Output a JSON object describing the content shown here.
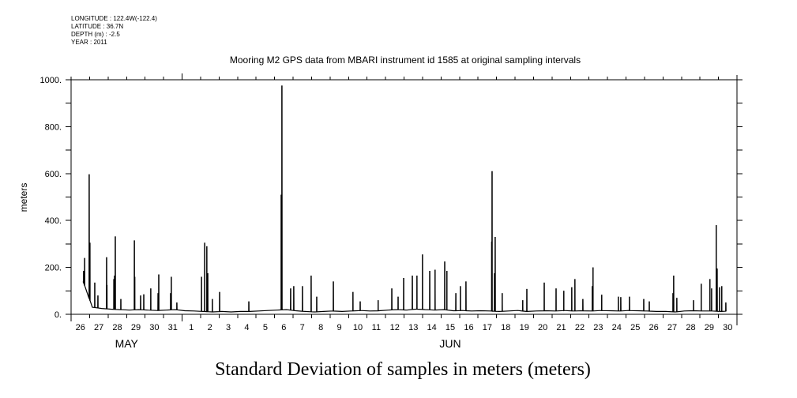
{
  "header": {
    "longitude": "LONGITUDE : 122.4W(-122.4)",
    "latitude": "LATITUDE : 36.7N",
    "depth": "DEPTH (m) : -2.5",
    "year": "YEAR : 2011"
  },
  "chart_data": {
    "type": "line",
    "title": "Mooring M2 GPS data from MBARI instrument id 1585 at original sampling intervals",
    "xlabel": "Standard Deviation of samples in meters (meters)",
    "ylabel": "meters",
    "x_units": "days since 2011-05-26 00:00",
    "xlim": [
      0,
      36
    ],
    "ylim": [
      0,
      1000
    ],
    "yticks": [
      0,
      200,
      400,
      600,
      800,
      1000
    ],
    "ytick_labels": [
      "0.",
      "200.",
      "400.",
      "600.",
      "800.",
      "1000."
    ],
    "y_minor_step": 100,
    "xtick_labels": [
      "26",
      "27",
      "28",
      "29",
      "30",
      "31",
      "1",
      "2",
      "3",
      "4",
      "5",
      "6",
      "7",
      "8",
      "9",
      "10",
      "11",
      "12",
      "13",
      "14",
      "15",
      "16",
      "17",
      "18",
      "19",
      "20",
      "21",
      "22",
      "23",
      "24",
      "25",
      "26",
      "27",
      "28",
      "29",
      "30"
    ],
    "month_labels": [
      {
        "label": "MAY",
        "day": 3
      },
      {
        "label": "JUN",
        "day": 20.5
      }
    ],
    "month_boundary_day": 6,
    "line_color": "#000000",
    "data_start_day": 0.65,
    "data_end_day": 35.55,
    "baseline_step_days": 0.5,
    "baseline": [
      140,
      30,
      25,
      22,
      20,
      18,
      20,
      18,
      16,
      18,
      20,
      15,
      14,
      12,
      10,
      12,
      10,
      12,
      12,
      14,
      16,
      18,
      20,
      15,
      12,
      10,
      12,
      14,
      12,
      14,
      16,
      14,
      15,
      18,
      20,
      18,
      22,
      20,
      18,
      20,
      15,
      16,
      14,
      15,
      14,
      12,
      14,
      16,
      12,
      14,
      15,
      14,
      16,
      14,
      15,
      14,
      16,
      15,
      14,
      16,
      15,
      14,
      12,
      12,
      10,
      14,
      15,
      14,
      14,
      12,
      14,
      10
    ],
    "spikes": [
      [
        0.68,
        185
      ],
      [
        0.73,
        240
      ],
      [
        0.98,
        597
      ],
      [
        1.02,
        305
      ],
      [
        1.28,
        135
      ],
      [
        1.45,
        80
      ],
      [
        1.92,
        243
      ],
      [
        1.94,
        125
      ],
      [
        2.31,
        150
      ],
      [
        2.35,
        165
      ],
      [
        2.39,
        332
      ],
      [
        2.69,
        65
      ],
      [
        3.42,
        315
      ],
      [
        3.44,
        160
      ],
      [
        3.76,
        80
      ],
      [
        3.93,
        85
      ],
      [
        4.31,
        110
      ],
      [
        4.7,
        90
      ],
      [
        4.74,
        170
      ],
      [
        5.38,
        90
      ],
      [
        5.42,
        160
      ],
      [
        5.72,
        50
      ],
      [
        7.05,
        160
      ],
      [
        7.22,
        305
      ],
      [
        7.34,
        290
      ],
      [
        7.39,
        175
      ],
      [
        7.64,
        65
      ],
      [
        8.03,
        95
      ],
      [
        9.61,
        55
      ],
      [
        11.36,
        510
      ],
      [
        11.4,
        975
      ],
      [
        11.87,
        110
      ],
      [
        12.04,
        120
      ],
      [
        12.51,
        120
      ],
      [
        12.98,
        165
      ],
      [
        13.28,
        75
      ],
      [
        14.18,
        140
      ],
      [
        15.24,
        95
      ],
      [
        15.63,
        55
      ],
      [
        16.6,
        60
      ],
      [
        17.34,
        110
      ],
      [
        17.68,
        75
      ],
      [
        17.98,
        155
      ],
      [
        18.45,
        165
      ],
      [
        18.7,
        165
      ],
      [
        19.0,
        255
      ],
      [
        19.39,
        185
      ],
      [
        19.68,
        190
      ],
      [
        20.2,
        225
      ],
      [
        20.32,
        185
      ],
      [
        20.8,
        90
      ],
      [
        21.05,
        120
      ],
      [
        21.35,
        140
      ],
      [
        22.74,
        310
      ],
      [
        22.76,
        610
      ],
      [
        22.89,
        175
      ],
      [
        22.93,
        330
      ],
      [
        23.31,
        90
      ],
      [
        24.42,
        60
      ],
      [
        24.64,
        108
      ],
      [
        25.58,
        135
      ],
      [
        26.22,
        110
      ],
      [
        26.64,
        100
      ],
      [
        27.07,
        115
      ],
      [
        27.24,
        150
      ],
      [
        27.67,
        65
      ],
      [
        28.18,
        120
      ],
      [
        28.22,
        200
      ],
      [
        28.69,
        83
      ],
      [
        29.59,
        75
      ],
      [
        29.72,
        73
      ],
      [
        30.19,
        75
      ],
      [
        30.96,
        65
      ],
      [
        31.26,
        55
      ],
      [
        32.54,
        90
      ],
      [
        32.58,
        165
      ],
      [
        32.75,
        70
      ],
      [
        33.65,
        60
      ],
      [
        34.07,
        130
      ],
      [
        34.54,
        150
      ],
      [
        34.63,
        110
      ],
      [
        34.88,
        380
      ],
      [
        34.93,
        195
      ],
      [
        35.06,
        115
      ],
      [
        35.18,
        120
      ],
      [
        35.4,
        50
      ]
    ]
  }
}
